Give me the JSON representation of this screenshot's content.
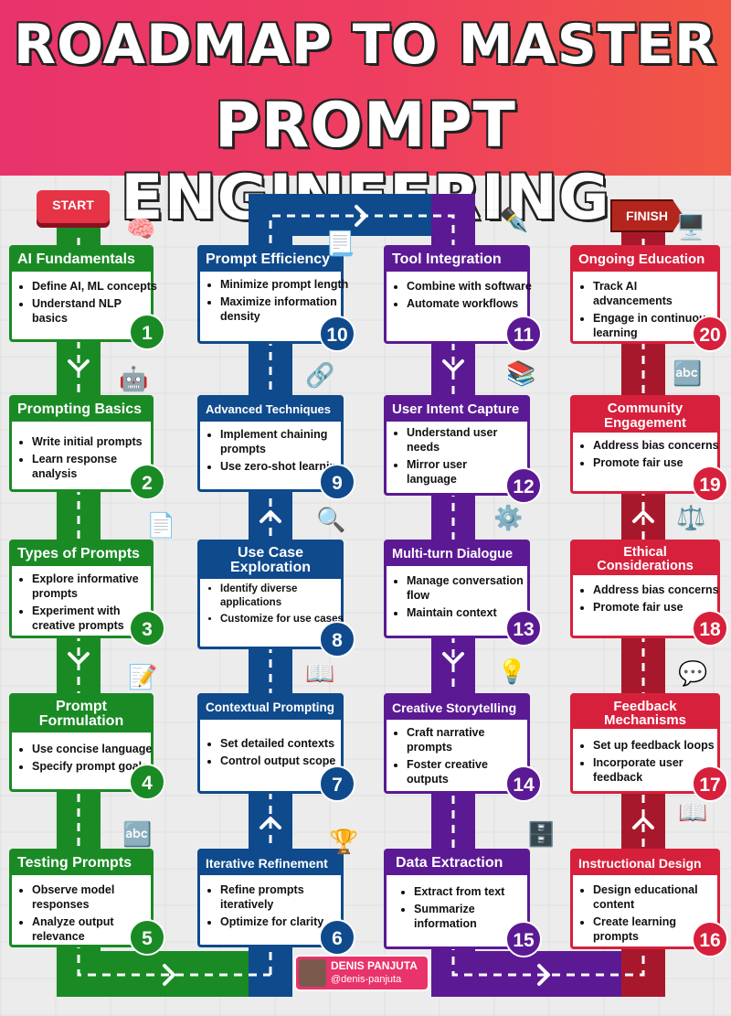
{
  "title": {
    "line1": "ROADMAP TO MASTER",
    "line2": "PROMPT ENGINEERING"
  },
  "start_label": "START",
  "finish_label": "FINISH",
  "author": {
    "name": "DENIS PANJUTA",
    "handle": "@denis-panjuta"
  },
  "colors": {
    "green": "#1a8a25",
    "blue": "#0f4a8c",
    "purple": "#5b1a94",
    "red": "#d7203c",
    "header": "#e8336b"
  },
  "steps": [
    {
      "num": "1",
      "title": "AI Fundamentals",
      "items": [
        "Define AI, ML concepts",
        "Understand NLP basics"
      ],
      "icon": "ai-chip-icon"
    },
    {
      "num": "2",
      "title": "Prompting Basics",
      "items": [
        "Write initial prompts",
        "Learn response analysis"
      ],
      "icon": "robot-prompt-icon"
    },
    {
      "num": "3",
      "title": "Types of Prompts",
      "items": [
        "Explore informative prompts",
        "Experiment with creative prompts"
      ],
      "icon": "ai-document-icon"
    },
    {
      "num": "4",
      "title": "Prompt Formulation",
      "items": [
        "Use concise language",
        "Specify prompt goals"
      ],
      "icon": "writing-document-icon"
    },
    {
      "num": "5",
      "title": "Testing Prompts",
      "items": [
        "Observe model responses",
        "Analyze output relevance"
      ],
      "icon": "abc-blocks-icon"
    },
    {
      "num": "6",
      "title": "Iterative Refinement",
      "items": [
        "Refine prompts iteratively",
        "Optimize for clarity"
      ],
      "icon": "funnel-icon"
    },
    {
      "num": "7",
      "title": "Contextual Prompting",
      "items": [
        "Set detailed contexts",
        "Control output scope"
      ],
      "icon": "book-magnifier-icon"
    },
    {
      "num": "8",
      "title": "Use Case Exploration",
      "items": [
        "Identify diverse applications",
        "Customize for use cases"
      ],
      "icon": "magnifier-hand-icon"
    },
    {
      "num": "9",
      "title": "Advanced Techniques",
      "items": [
        "Implement chaining prompts",
        "Use zero-shot learning"
      ],
      "icon": "chain-link-icon"
    },
    {
      "num": "10",
      "title": "Prompt Efficiency",
      "items": [
        "Minimize prompt length",
        "Maximize information density"
      ],
      "icon": "papers-icon"
    },
    {
      "num": "11",
      "title": "Tool Integration",
      "items": [
        "Combine with software",
        "Automate workflows"
      ],
      "icon": "pen-tool-icon"
    },
    {
      "num": "12",
      "title": "User Intent Capture",
      "items": [
        "Understand user needs",
        "Mirror user language"
      ],
      "icon": "stacked-blocks-icon"
    },
    {
      "num": "13",
      "title": "Multi-turn Dialogue",
      "items": [
        "Manage conversation flow",
        "Maintain context"
      ],
      "icon": "gears-icon"
    },
    {
      "num": "14",
      "title": "Creative Storytelling",
      "items": [
        "Craft narrative prompts",
        "Foster creative outputs"
      ],
      "icon": "lightbulb-page-icon"
    },
    {
      "num": "15",
      "title": "Data Extraction",
      "items": [
        "Extract from text",
        "Summarize information"
      ],
      "icon": "database-funnel-icon"
    },
    {
      "num": "16",
      "title": "Instructional Design",
      "items": [
        "Design educational content",
        "Create learning prompts"
      ],
      "icon": "open-book-icon"
    },
    {
      "num": "17",
      "title": "Feedback Mechanisms",
      "items": [
        "Set up feedback loops",
        "Incorporate user feedback"
      ],
      "icon": "chat-heart-icon"
    },
    {
      "num": "18",
      "title": "Ethical Considerations",
      "items": [
        "Address bias concerns",
        "Promote fair use"
      ],
      "icon": "law-book-icon"
    },
    {
      "num": "19",
      "title": "Community Engagement",
      "items": [
        "Address bias concerns",
        "Promote fair use"
      ],
      "icon": "abc-blocks-icon"
    },
    {
      "num": "20",
      "title": "Ongoing Education",
      "items": [
        "Track AI advancements",
        "Engage in continuous learning"
      ],
      "icon": "finish-sign-icon"
    }
  ]
}
